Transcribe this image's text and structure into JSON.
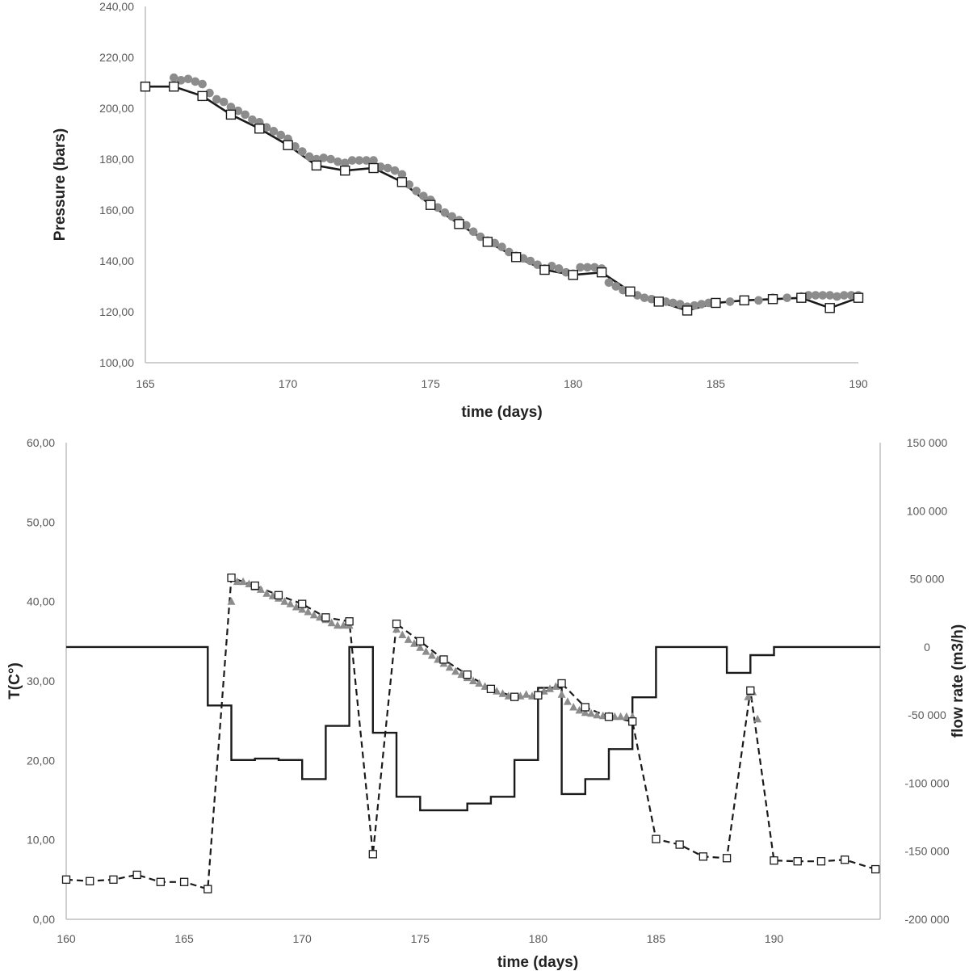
{
  "colors": {
    "solid_line": "#1a1a1a",
    "marker_gray": "#8c8c8c",
    "marker_square_fill": "#ffffff",
    "axis": "#bfbfbf",
    "tick_text": "#595959"
  },
  "chart_data": [
    {
      "type": "line",
      "title": "",
      "xlabel": "time (days)",
      "ylabel": "Pressure (bars)",
      "xlim": [
        165,
        190
      ],
      "ylim": [
        100,
        240
      ],
      "x_ticks": [
        {
          "value": 165,
          "label": "165"
        },
        {
          "value": 170,
          "label": "170"
        },
        {
          "value": 175,
          "label": "175"
        },
        {
          "value": 180,
          "label": "180"
        },
        {
          "value": 185,
          "label": "185"
        },
        {
          "value": 190,
          "label": "190"
        }
      ],
      "y_ticks": [
        {
          "value": 100,
          "label": "100,00"
        },
        {
          "value": 120,
          "label": "120,00"
        },
        {
          "value": 140,
          "label": "140,00"
        },
        {
          "value": 160,
          "label": "160,00"
        },
        {
          "value": 180,
          "label": "180,00"
        },
        {
          "value": 200,
          "label": "200,00"
        },
        {
          "value": 220,
          "label": "220,00"
        },
        {
          "value": 240,
          "label": "240,00"
        }
      ],
      "grid": false,
      "series": [
        {
          "style": "solid-line-square-markers",
          "x": [
            165,
            166,
            167,
            168,
            169,
            170,
            171,
            172,
            173,
            174,
            175,
            176,
            177,
            178,
            179,
            180,
            181,
            182,
            183,
            184,
            185,
            186,
            187,
            188,
            189,
            190
          ],
          "y": [
            208.5,
            208.5,
            204.8,
            197.5,
            192,
            185.5,
            177.5,
            175.5,
            176.5,
            171,
            162,
            154.5,
            147.5,
            141.5,
            136.5,
            134.5,
            135.5,
            128,
            124,
            120.5,
            123.5,
            124.5,
            125,
            125.5,
            121.5,
            125.5
          ]
        },
        {
          "style": "gray-circle-markers",
          "x": [
            166,
            166.25,
            166.5,
            166.75,
            167,
            167.25,
            167.5,
            167.75,
            168,
            168.25,
            168.5,
            168.75,
            169,
            169.25,
            169.5,
            169.75,
            170,
            170.25,
            170.5,
            170.75,
            171,
            171.25,
            171.5,
            171.75,
            172,
            172.25,
            172.5,
            172.75,
            173,
            173.25,
            173.5,
            173.75,
            174,
            174.25,
            174.5,
            174.75,
            175,
            175.25,
            175.5,
            175.75,
            176,
            176.25,
            176.5,
            176.75,
            177,
            177.25,
            177.5,
            177.75,
            178,
            178.25,
            178.5,
            178.75,
            179,
            179.25,
            179.5,
            179.75,
            180,
            180.25,
            180.5,
            180.75,
            181,
            181.25,
            181.5,
            181.75,
            182,
            182.25,
            182.5,
            182.75,
            183,
            183.25,
            183.5,
            183.75,
            184,
            184.25,
            184.5,
            184.75,
            185,
            185.5,
            186,
            186.5,
            187,
            187.5,
            188,
            188.25,
            188.5,
            188.75,
            189,
            189.25,
            189.5,
            189.75,
            190
          ],
          "y": [
            212,
            211,
            211.5,
            210.5,
            209.5,
            206,
            203.5,
            202.5,
            200.5,
            199,
            197.5,
            195.5,
            194.5,
            192.5,
            191,
            189.5,
            188,
            185,
            183,
            181,
            180,
            180.5,
            180,
            179,
            178.5,
            179.5,
            179.5,
            179.5,
            179.5,
            177,
            176.5,
            175.5,
            174,
            170,
            167.5,
            165.5,
            164,
            161,
            159,
            157.5,
            156,
            154,
            151.5,
            149.5,
            148,
            147,
            145.5,
            143.5,
            142,
            141,
            140,
            138.5,
            137,
            138,
            137,
            135.5,
            135,
            137.5,
            137.5,
            137.5,
            137,
            131.5,
            130,
            128.5,
            128,
            126.5,
            125.5,
            125,
            124,
            124,
            123.5,
            123,
            122,
            122.5,
            123,
            123.5,
            123.5,
            124,
            124.5,
            124.5,
            125.5,
            125.5,
            126,
            126.5,
            126.5,
            126.5,
            126.5,
            126,
            126.5,
            126.5,
            126.5
          ]
        }
      ]
    },
    {
      "type": "line",
      "title": "",
      "xlabel": "time (days)",
      "ylabel": "T(C°)",
      "y2label": "flow rate (m3/h)",
      "xlim": [
        160,
        194.5
      ],
      "ylim": [
        0,
        60
      ],
      "y2lim": [
        -200000,
        150000
      ],
      "x_ticks": [
        {
          "value": 160,
          "label": "160"
        },
        {
          "value": 165,
          "label": "165"
        },
        {
          "value": 170,
          "label": "170"
        },
        {
          "value": 175,
          "label": "175"
        },
        {
          "value": 180,
          "label": "180"
        },
        {
          "value": 185,
          "label": "185"
        },
        {
          "value": 190,
          "label": "190"
        }
      ],
      "y_ticks": [
        {
          "value": 0,
          "label": "0,00"
        },
        {
          "value": 10,
          "label": "10,00"
        },
        {
          "value": 20,
          "label": "20,00"
        },
        {
          "value": 30,
          "label": "30,00"
        },
        {
          "value": 40,
          "label": "40,00"
        },
        {
          "value": 50,
          "label": "50,00"
        },
        {
          "value": 60,
          "label": "60,00"
        }
      ],
      "y2_ticks": [
        {
          "value": -200000,
          "label": "-200 000"
        },
        {
          "value": -150000,
          "label": "-150 000"
        },
        {
          "value": -100000,
          "label": "-100 000"
        },
        {
          "value": -50000,
          "label": "-50 000"
        },
        {
          "value": 0,
          "label": "0"
        },
        {
          "value": 50000,
          "label": "50 000"
        },
        {
          "value": 100000,
          "label": "100 000"
        },
        {
          "value": 150000,
          "label": "150 000"
        }
      ],
      "grid": false,
      "series": [
        {
          "style": "step-solid-line",
          "axis": "right",
          "steps": [
            {
              "x0": 160,
              "x1": 166,
              "y": 0
            },
            {
              "x0": 166,
              "x1": 167,
              "y": -43000
            },
            {
              "x0": 167,
              "x1": 168,
              "y": -83000
            },
            {
              "x0": 168,
              "x1": 169,
              "y": -82000
            },
            {
              "x0": 169,
              "x1": 170,
              "y": -83000
            },
            {
              "x0": 170,
              "x1": 171,
              "y": -97000
            },
            {
              "x0": 171,
              "x1": 172,
              "y": -58000
            },
            {
              "x0": 172,
              "x1": 173,
              "y": 0
            },
            {
              "x0": 173,
              "x1": 174,
              "y": -63000
            },
            {
              "x0": 174,
              "x1": 175,
              "y": -110000
            },
            {
              "x0": 175,
              "x1": 177,
              "y": -120000
            },
            {
              "x0": 177,
              "x1": 178,
              "y": -115000
            },
            {
              "x0": 178,
              "x1": 179,
              "y": -110000
            },
            {
              "x0": 179,
              "x1": 180,
              "y": -83000
            },
            {
              "x0": 180,
              "x1": 181,
              "y": -30000
            },
            {
              "x0": 181,
              "x1": 182,
              "y": -108000
            },
            {
              "x0": 182,
              "x1": 183,
              "y": -97000
            },
            {
              "x0": 183,
              "x1": 184,
              "y": -75000
            },
            {
              "x0": 184,
              "x1": 185,
              "y": -37000
            },
            {
              "x0": 185,
              "x1": 188,
              "y": 0
            },
            {
              "x0": 188,
              "x1": 189,
              "y": -19000
            },
            {
              "x0": 189,
              "x1": 190,
              "y": -6000
            },
            {
              "x0": 190,
              "x1": 194.5,
              "y": 0
            }
          ]
        },
        {
          "style": "dashed-line-square-markers",
          "axis": "left",
          "x": [
            160,
            161,
            162,
            163,
            164,
            165,
            166,
            167,
            168,
            169,
            170,
            171,
            172,
            173,
            174,
            175,
            176,
            177,
            178,
            179,
            180,
            181,
            182,
            183,
            184,
            185,
            186,
            187,
            188,
            189,
            190,
            191,
            192,
            193,
            194.3
          ],
          "y": [
            5,
            4.8,
            5,
            5.6,
            4.7,
            4.7,
            3.8,
            43,
            42,
            40.8,
            39.7,
            38,
            37.5,
            8.2,
            37.2,
            35,
            32.7,
            30.8,
            29,
            28,
            28.2,
            29.7,
            26.7,
            25.5,
            24.9,
            10.1,
            9.4,
            7.9,
            7.7,
            28.8,
            7.4,
            7.3,
            7.3,
            7.5,
            6.3
          ]
        },
        {
          "style": "gray-triangle-markers",
          "axis": "left",
          "x": [
            167,
            167.25,
            167.5,
            167.75,
            168,
            168.25,
            168.5,
            168.75,
            169,
            169.25,
            169.5,
            169.75,
            170,
            170.25,
            170.5,
            170.75,
            171,
            171.25,
            171.5,
            171.75,
            172,
            174,
            174.25,
            174.5,
            174.75,
            175,
            175.25,
            175.5,
            175.75,
            176,
            176.25,
            176.5,
            176.75,
            177,
            177.25,
            177.5,
            177.75,
            178,
            178.25,
            178.5,
            178.75,
            179,
            179.25,
            179.5,
            179.75,
            180,
            180.25,
            180.5,
            180.75,
            181,
            181.25,
            181.5,
            181.75,
            182,
            182.25,
            182.5,
            182.75,
            183,
            183.25,
            183.5,
            183.75,
            184,
            188.9,
            189.1,
            189.3
          ],
          "y": [
            40,
            42.5,
            42.5,
            42.2,
            41.8,
            41.5,
            41,
            40.7,
            40.4,
            40,
            39.7,
            39.3,
            39,
            38.7,
            38.3,
            38,
            37.7,
            37.3,
            37,
            37,
            37,
            36.5,
            35.8,
            35.2,
            34.7,
            34.2,
            33.7,
            33.2,
            32.7,
            32.2,
            31.7,
            31.2,
            30.8,
            30.4,
            30,
            29.7,
            29.3,
            29,
            28.7,
            28.4,
            28.1,
            27.9,
            28.1,
            28.3,
            28.1,
            28.3,
            28.7,
            29,
            29.3,
            28.3,
            27.4,
            26.7,
            26.3,
            26,
            25.9,
            25.7,
            25.6,
            25.6,
            25.5,
            25.5,
            25.5,
            25.5,
            28,
            28.6,
            25.2
          ]
        }
      ]
    }
  ]
}
